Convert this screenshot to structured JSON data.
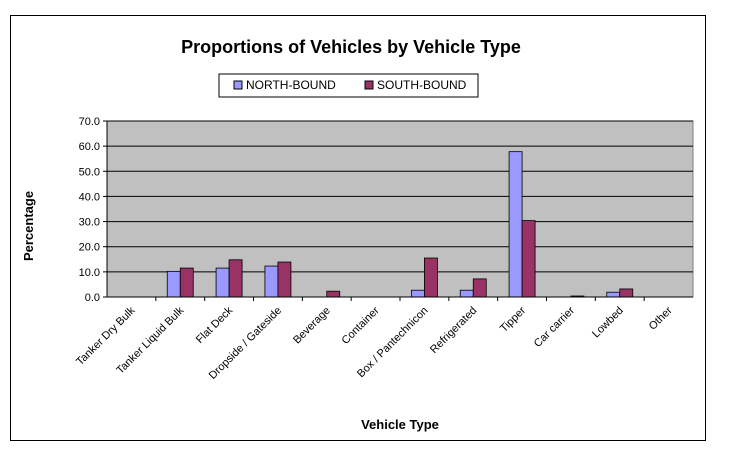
{
  "chart_data": {
    "type": "bar",
    "title": "Proportions of Vehicles by Vehicle Type",
    "xlabel": "Vehicle Type",
    "ylabel": "Percentage",
    "ylim": [
      0,
      70
    ],
    "yticks": [
      "0.0",
      "10.0",
      "20.0",
      "30.0",
      "40.0",
      "50.0",
      "60.0",
      "70.0"
    ],
    "grid": true,
    "legend_position": "top-center",
    "categories": [
      "Tanker Dry Bulk",
      "Tanker Liquid Bulk",
      "Flat Deck",
      "Dropside / Gateside",
      "Beverage",
      "Container",
      "Box / Pantechnicon",
      "Refrigerated",
      "Tipper",
      "Car carrier",
      "Lowbed",
      "Other"
    ],
    "series": [
      {
        "name": "NORTH-BOUND",
        "color": "#9999ff",
        "values": [
          0,
          10.2,
          11.5,
          12.3,
          0,
          0,
          2.7,
          2.7,
          57.8,
          0,
          1.9,
          0
        ]
      },
      {
        "name": "SOUTH-BOUND",
        "color": "#993366",
        "values": [
          0,
          11.5,
          14.8,
          13.9,
          2.3,
          0,
          15.5,
          7.2,
          30.4,
          0.4,
          3.2,
          0
        ]
      }
    ],
    "plot_background": "#c0c0c0"
  }
}
